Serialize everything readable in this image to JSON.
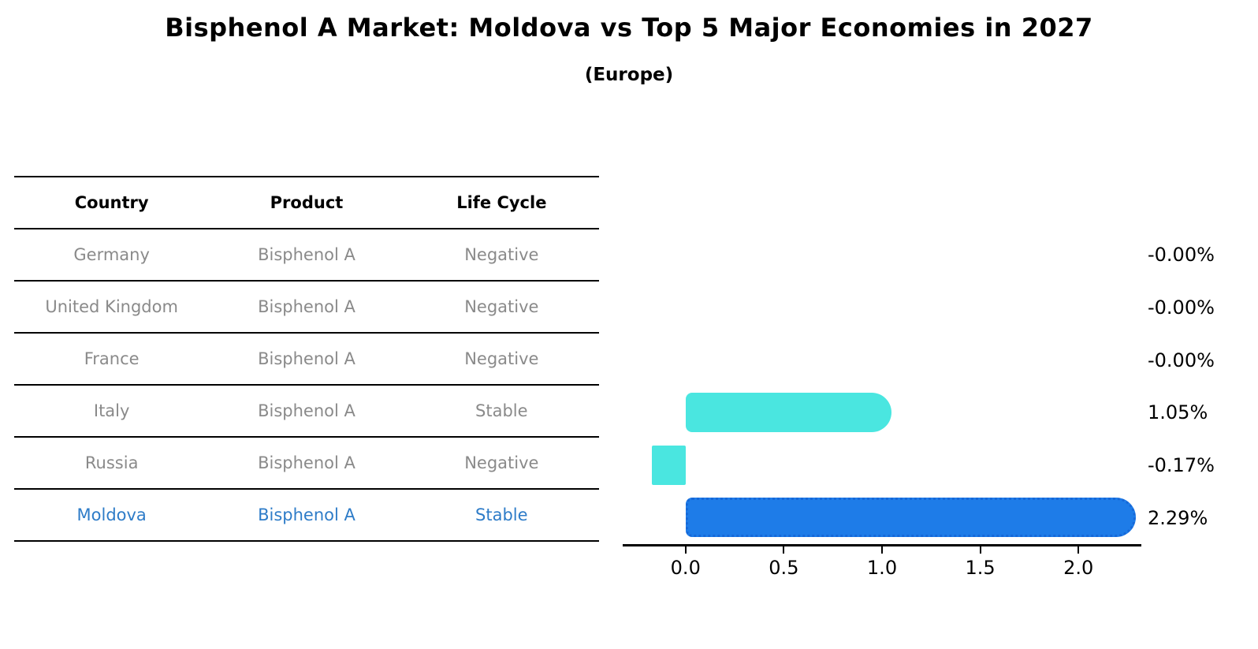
{
  "title": "Bisphenol A Market: Moldova vs Top 5 Major Economies in 2027",
  "subtitle": "(Europe)",
  "table": {
    "headers": [
      "Country",
      "Product",
      "Life Cycle"
    ],
    "rows": [
      {
        "country": "Germany",
        "product": "Bisphenol A",
        "life_cycle": "Negative",
        "highlighted": false
      },
      {
        "country": "United Kingdom",
        "product": "Bisphenol A",
        "life_cycle": "Negative",
        "highlighted": false
      },
      {
        "country": "France",
        "product": "Bisphenol A",
        "life_cycle": "Negative",
        "highlighted": false
      },
      {
        "country": "Italy",
        "product": "Bisphenol A",
        "life_cycle": "Stable",
        "highlighted": false
      },
      {
        "country": "Russia",
        "product": "Bisphenol A",
        "life_cycle": "Negative",
        "highlighted": false
      },
      {
        "country": "Moldova",
        "product": "Bisphenol A",
        "life_cycle": "Stable",
        "highlighted": true
      }
    ]
  },
  "chart_data": {
    "type": "bar",
    "orientation": "horizontal",
    "title": "Bisphenol A Market: Moldova vs Top 5 Major Economies in 2027",
    "subtitle": "(Europe)",
    "categories": [
      "Germany",
      "United Kingdom",
      "France",
      "Italy",
      "Russia",
      "Moldova"
    ],
    "values": [
      -0.0,
      -0.0,
      -0.0,
      1.05,
      -0.17,
      2.29
    ],
    "value_labels": [
      "-0.00%",
      "-0.00%",
      "-0.00%",
      "1.05%",
      "-0.17%",
      "2.29%"
    ],
    "unit": "%",
    "highlight_index": 5,
    "x_ticks": [
      0.0,
      0.5,
      1.0,
      1.5,
      2.0
    ],
    "x_tick_labels": [
      "0.0",
      "0.5",
      "1.0",
      "1.5",
      "2.0"
    ],
    "xlim": [
      -0.32,
      2.32
    ],
    "grid": false,
    "legend": false,
    "colors": {
      "bar_default": "#4AE6E0",
      "bar_highlight": "#1E7CE8",
      "bar_highlight_border": "#1668D8",
      "highlight_text": "#2E7CC8",
      "table_text": "#8A8A8A",
      "axis": "#000000",
      "background": "#FFFFFF"
    }
  }
}
